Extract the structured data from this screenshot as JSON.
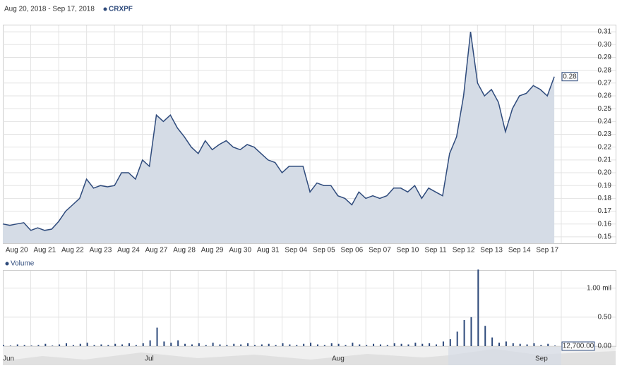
{
  "chart_data": [
    {
      "type": "line",
      "title": "Aug 20, 2018 - Sep 17, 2018",
      "xlim": [
        0,
        20
      ],
      "xticks": [
        {
          "value": 0.5,
          "label": "Aug 20"
        },
        {
          "value": 1.5,
          "label": "Aug 21"
        },
        {
          "value": 2.5,
          "label": "Aug 22"
        },
        {
          "value": 3.5,
          "label": "Aug 23"
        },
        {
          "value": 4.5,
          "label": "Aug 24"
        },
        {
          "value": 5.5,
          "label": "Aug 27"
        },
        {
          "value": 6.5,
          "label": "Aug 28"
        },
        {
          "value": 7.5,
          "label": "Aug 29"
        },
        {
          "value": 8.5,
          "label": "Aug 30"
        },
        {
          "value": 9.5,
          "label": "Aug 31"
        },
        {
          "value": 10.5,
          "label": "Sep 04"
        },
        {
          "value": 11.5,
          "label": "Sep 05"
        },
        {
          "value": 12.5,
          "label": "Sep 06"
        },
        {
          "value": 13.5,
          "label": "Sep 07"
        },
        {
          "value": 14.5,
          "label": "Sep 10"
        },
        {
          "value": 15.5,
          "label": "Sep 11"
        },
        {
          "value": 16.5,
          "label": "Sep 12"
        },
        {
          "value": 17.5,
          "label": "Sep 13"
        },
        {
          "value": 18.5,
          "label": "Sep 14"
        },
        {
          "value": 19.5,
          "label": "Sep 17"
        }
      ],
      "ylim": [
        0.145,
        0.315
      ],
      "yticks": [
        0.15,
        0.16,
        0.17,
        0.18,
        0.19,
        {
          "value": 0.2,
          "label": "0.20"
        },
        0.21,
        0.22,
        0.23,
        0.24,
        0.25,
        0.26,
        0.27,
        0.28,
        0.29,
        {
          "value": 0.3,
          "label": "0.30"
        },
        0.31
      ],
      "grid": true,
      "series": [
        {
          "name": "CRXPF",
          "color": "#2f4b7c",
          "fill": "#d5dce6",
          "x": [
            0,
            0.25,
            0.5,
            0.75,
            1,
            1.25,
            1.5,
            1.75,
            2,
            2.25,
            2.5,
            2.75,
            3,
            3.25,
            3.5,
            3.75,
            4,
            4.25,
            4.5,
            4.75,
            5,
            5.25,
            5.5,
            5.75,
            6,
            6.25,
            6.5,
            6.75,
            7,
            7.25,
            7.5,
            7.75,
            8,
            8.25,
            8.5,
            8.75,
            9,
            9.25,
            9.5,
            9.75,
            10,
            10.25,
            10.5,
            10.75,
            11,
            11.25,
            11.5,
            11.75,
            12,
            12.25,
            12.5,
            12.75,
            13,
            13.25,
            13.5,
            13.75,
            14,
            14.25,
            14.5,
            14.75,
            15,
            15.25,
            15.5,
            15.75,
            16,
            16.25,
            16.5,
            16.75,
            17,
            17.25,
            17.5,
            17.75,
            18,
            18.25,
            18.5,
            18.75,
            19,
            19.25,
            19.5,
            19.75
          ],
          "values": [
            0.16,
            0.159,
            0.16,
            0.161,
            0.155,
            0.157,
            0.155,
            0.156,
            0.162,
            0.17,
            0.175,
            0.18,
            0.195,
            0.188,
            0.19,
            0.189,
            0.19,
            0.2,
            0.2,
            0.195,
            0.21,
            0.205,
            0.245,
            0.24,
            0.245,
            0.235,
            0.228,
            0.22,
            0.215,
            0.225,
            0.218,
            0.222,
            0.225,
            0.22,
            0.218,
            0.222,
            0.22,
            0.215,
            0.21,
            0.208,
            0.2,
            0.205,
            0.205,
            0.205,
            0.185,
            0.192,
            0.19,
            0.19,
            0.182,
            0.18,
            0.175,
            0.185,
            0.18,
            0.182,
            0.18,
            0.182,
            0.188,
            0.188,
            0.185,
            0.19,
            0.18,
            0.188,
            0.185,
            0.182,
            0.215,
            0.228,
            0.26,
            0.31,
            0.27,
            0.26,
            0.265,
            0.255,
            0.232,
            0.25,
            0.26,
            0.262,
            0.268,
            0.265,
            0.26,
            0.275
          ],
          "last_label": "0.28"
        }
      ]
    },
    {
      "type": "bar",
      "title": "Volume",
      "xlim": [
        0,
        20
      ],
      "ylim": [
        0,
        1.3
      ],
      "yticks": [
        {
          "value": 0,
          "label": "0.00"
        },
        {
          "value": 0.5,
          "label": "0.50"
        },
        {
          "value": 1,
          "label": "1.00 mil"
        }
      ],
      "series": [
        {
          "name": "Volume",
          "color": "#2f4b7c",
          "x": [
            0,
            0.25,
            0.5,
            0.75,
            1,
            1.25,
            1.5,
            1.75,
            2,
            2.25,
            2.5,
            2.75,
            3,
            3.25,
            3.5,
            3.75,
            4,
            4.25,
            4.5,
            4.75,
            5,
            5.25,
            5.5,
            5.75,
            6,
            6.25,
            6.5,
            6.75,
            7,
            7.25,
            7.5,
            7.75,
            8,
            8.25,
            8.5,
            8.75,
            9,
            9.25,
            9.5,
            9.75,
            10,
            10.25,
            10.5,
            10.75,
            11,
            11.25,
            11.5,
            11.75,
            12,
            12.25,
            12.5,
            12.75,
            13,
            13.25,
            13.5,
            13.75,
            14,
            14.25,
            14.5,
            14.75,
            15,
            15.25,
            15.5,
            15.75,
            16,
            16.25,
            16.5,
            16.75,
            17,
            17.25,
            17.5,
            17.75,
            18,
            18.25,
            18.5,
            18.75,
            19,
            19.25,
            19.5,
            19.75
          ],
          "values": [
            0.02,
            0.01,
            0.03,
            0.02,
            0.01,
            0.02,
            0.04,
            0.01,
            0.03,
            0.05,
            0.02,
            0.04,
            0.06,
            0.02,
            0.03,
            0.02,
            0.04,
            0.03,
            0.05,
            0.02,
            0.05,
            0.1,
            0.32,
            0.08,
            0.06,
            0.1,
            0.04,
            0.03,
            0.05,
            0.02,
            0.06,
            0.03,
            0.02,
            0.04,
            0.03,
            0.05,
            0.02,
            0.03,
            0.04,
            0.02,
            0.05,
            0.03,
            0.02,
            0.04,
            0.06,
            0.03,
            0.02,
            0.05,
            0.04,
            0.02,
            0.06,
            0.03,
            0.02,
            0.04,
            0.03,
            0.02,
            0.05,
            0.04,
            0.03,
            0.06,
            0.04,
            0.05,
            0.03,
            0.08,
            0.12,
            0.25,
            0.45,
            0.5,
            1.32,
            0.35,
            0.15,
            0.06,
            0.08,
            0.05,
            0.04,
            0.03,
            0.05,
            0.02,
            0.04,
            0.01
          ],
          "last_label": "12,700.00"
        }
      ]
    }
  ],
  "navigator": {
    "labels": [
      "Jun",
      "Jul",
      "Aug",
      "Sep"
    ]
  }
}
